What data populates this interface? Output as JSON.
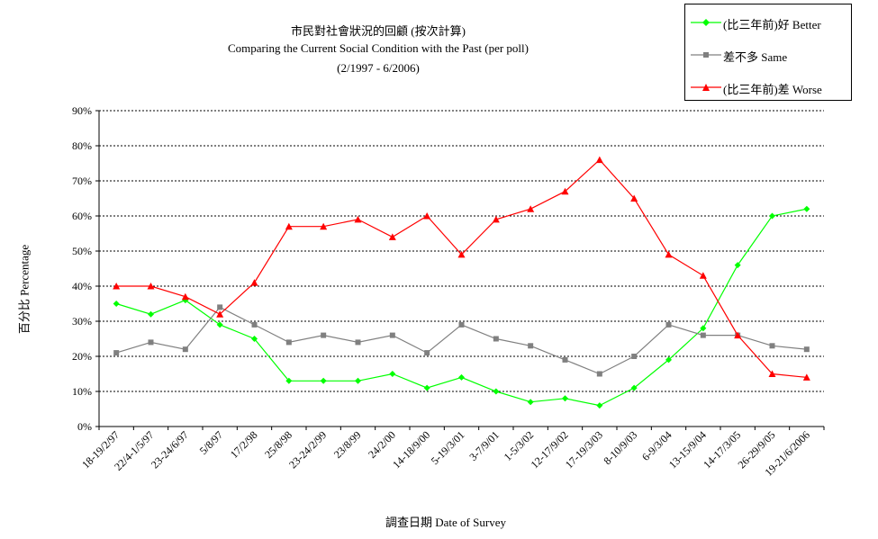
{
  "chart_data": {
    "type": "line",
    "title": "市民對社會狀況的回顧 (按次計算)",
    "subtitle": "Comparing the Current Social Condition with the Past  (per poll)",
    "period": "(2/1997 - 6/2006)",
    "xlabel": "調查日期 Date of Survey",
    "ylabel": "百分比 Percentage",
    "ylim": [
      0,
      90
    ],
    "yticks": [
      "0%",
      "10%",
      "20%",
      "30%",
      "40%",
      "50%",
      "60%",
      "70%",
      "80%",
      "90%"
    ],
    "grid": true,
    "legend_position": "top-right",
    "categories": [
      "18-19/2/97",
      "22/4-1/5/97",
      "23-24/6/97",
      "5/8/97",
      "17/2/98",
      "25/8/98",
      "23-24/2/99",
      "23/8/99",
      "24/2/00",
      "14-18/9/00",
      "5-19/3/01",
      "3-7/9/01",
      "1-5/3/02",
      "12-17/9/02",
      "17-19/3/03",
      "8-10/9/03",
      "6-9/3/04",
      "13-15/9/04",
      "14-17/3/05",
      "26-29/9/05",
      "19-21/6/2006"
    ],
    "series": [
      {
        "name": "(比三年前)好 Better",
        "color": "#00ff00",
        "marker": "diamond",
        "values": [
          35,
          32,
          36,
          29,
          25,
          13,
          13,
          13,
          15,
          11,
          14,
          10,
          7,
          8,
          6,
          11,
          19,
          28,
          46,
          60,
          62
        ]
      },
      {
        "name": "差不多 Same",
        "color": "#808080",
        "marker": "square",
        "values": [
          21,
          24,
          22,
          34,
          29,
          24,
          26,
          24,
          26,
          21,
          29,
          25,
          23,
          19,
          15,
          20,
          29,
          26,
          26,
          23,
          22
        ]
      },
      {
        "name": "(比三年前)差 Worse",
        "color": "#ff0000",
        "marker": "triangle",
        "values": [
          40,
          40,
          37,
          32,
          41,
          57,
          57,
          59,
          54,
          60,
          49,
          59,
          62,
          67,
          76,
          65,
          49,
          43,
          26,
          15,
          14
        ]
      }
    ]
  }
}
